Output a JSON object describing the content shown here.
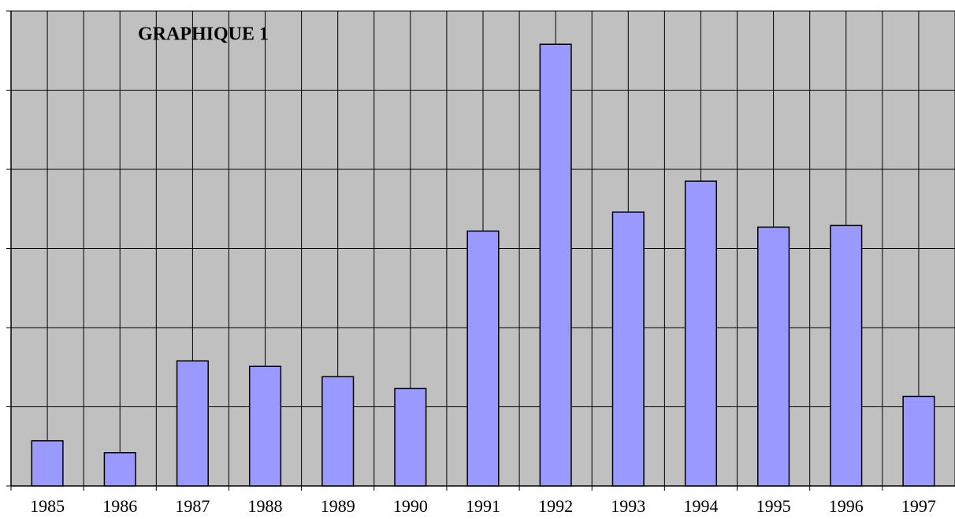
{
  "chart_data": {
    "type": "bar",
    "title": "GRAPHIQUE 1",
    "categories": [
      "1985",
      "1986",
      "1987",
      "1988",
      "1989",
      "1990",
      "1991",
      "1992",
      "1993",
      "1994",
      "1995",
      "1996",
      "1997"
    ],
    "values": [
      0.57,
      0.42,
      1.58,
      1.51,
      1.38,
      1.23,
      3.22,
      5.58,
      3.46,
      3.85,
      3.27,
      3.29,
      1.13
    ],
    "color": "#9999ff",
    "ylim": [
      0,
      6
    ],
    "yticks": [
      0,
      1,
      2,
      3,
      4,
      5,
      6
    ],
    "grid": true
  }
}
